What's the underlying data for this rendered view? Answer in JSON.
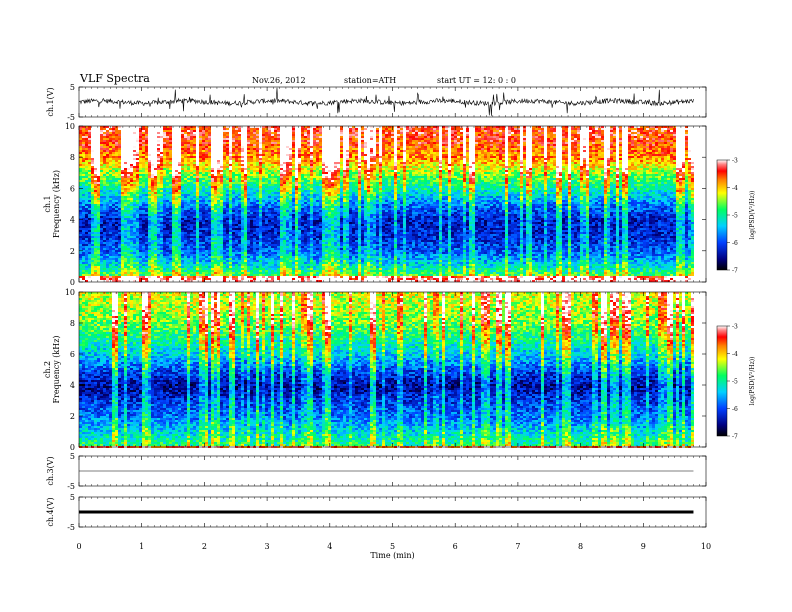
{
  "header": {
    "title": "VLF Spectra",
    "date": "Nov.26, 2012",
    "station": "station=ATH",
    "start": "start  UT =   12: 0  : 0"
  },
  "chart_data": [
    {
      "type": "line",
      "title": "",
      "ylabel": "ch.1(V)",
      "ylim": [
        -5,
        5
      ],
      "yticks": [
        "5",
        "-5"
      ],
      "x": [
        0,
        0.5,
        1,
        1.5,
        2,
        2.5,
        3,
        3.5,
        4,
        4.5,
        5,
        5.5,
        6,
        6.5,
        7,
        7.5,
        8,
        8.5,
        9,
        9.5,
        9.8
      ],
      "values": [
        0.4,
        0.1,
        -0.3,
        0.5,
        -0.2,
        0.3,
        0.1,
        -0.4,
        0.2,
        -0.1,
        0.3,
        -0.2,
        0.4,
        0,
        -0.3,
        0.2,
        -0.1,
        0.3,
        -0.2,
        0.1,
        0
      ]
    },
    {
      "type": "heatmap",
      "title": "",
      "ylabel": "Frequency (kHz)",
      "channel_label": "ch.1",
      "ylim": [
        0,
        10
      ],
      "yticks": [
        "0",
        "2",
        "4",
        "6",
        "8",
        "10"
      ],
      "x_range_min": [
        0,
        9.8
      ],
      "colorbar": {
        "label": "log(PSD(V²/Hz))",
        "range": [
          -7,
          -3
        ],
        "ticks": [
          "-3",
          "-4",
          "-5",
          "-6",
          "-7"
        ]
      },
      "freq_profile_khz": [
        0,
        1,
        2,
        3,
        4,
        5,
        6,
        7,
        8,
        9,
        10
      ],
      "logPSD_profile": [
        -4.2,
        -5.2,
        -5.9,
        -6.2,
        -6.3,
        -5.8,
        -5.1,
        -4.5,
        -3.8,
        -3.5,
        -3.4
      ]
    },
    {
      "type": "heatmap",
      "title": "",
      "ylabel": "Frequency (kHz)",
      "channel_label": "ch.2",
      "ylim": [
        0,
        10
      ],
      "yticks": [
        "0",
        "2",
        "4",
        "6",
        "8",
        "10"
      ],
      "x_range_min": [
        0,
        9.8
      ],
      "colorbar": {
        "label": "log(PSD(V²/Hz))",
        "range": [
          -7,
          -3
        ],
        "ticks": [
          "-3",
          "-4",
          "-5",
          "-6",
          "-7"
        ]
      },
      "freq_profile_khz": [
        0,
        1,
        2,
        3,
        4,
        5,
        6,
        7,
        8,
        9,
        10
      ],
      "logPSD_profile": [
        -4.8,
        -5.3,
        -5.8,
        -6.1,
        -6.5,
        -6.0,
        -5.4,
        -5.0,
        -4.6,
        -4.4,
        -4.3
      ]
    },
    {
      "type": "line",
      "title": "",
      "ylabel": "ch.3(V)",
      "ylim": [
        -5,
        5
      ],
      "yticks": [
        "5",
        "-5"
      ],
      "x": [
        0,
        9.8
      ],
      "values": [
        0,
        0
      ]
    },
    {
      "type": "line",
      "title": "",
      "ylabel": "ch.4(V)",
      "ylim": [
        -5,
        5
      ],
      "yticks": [
        "5",
        "-5"
      ],
      "x": [
        0,
        9.8
      ],
      "values": [
        0,
        0
      ]
    }
  ],
  "xaxis": {
    "label": "Time (min)",
    "range": [
      0,
      10
    ],
    "ticks": [
      "0",
      "1",
      "2",
      "3",
      "4",
      "5",
      "6",
      "7",
      "8",
      "9",
      "10"
    ]
  }
}
